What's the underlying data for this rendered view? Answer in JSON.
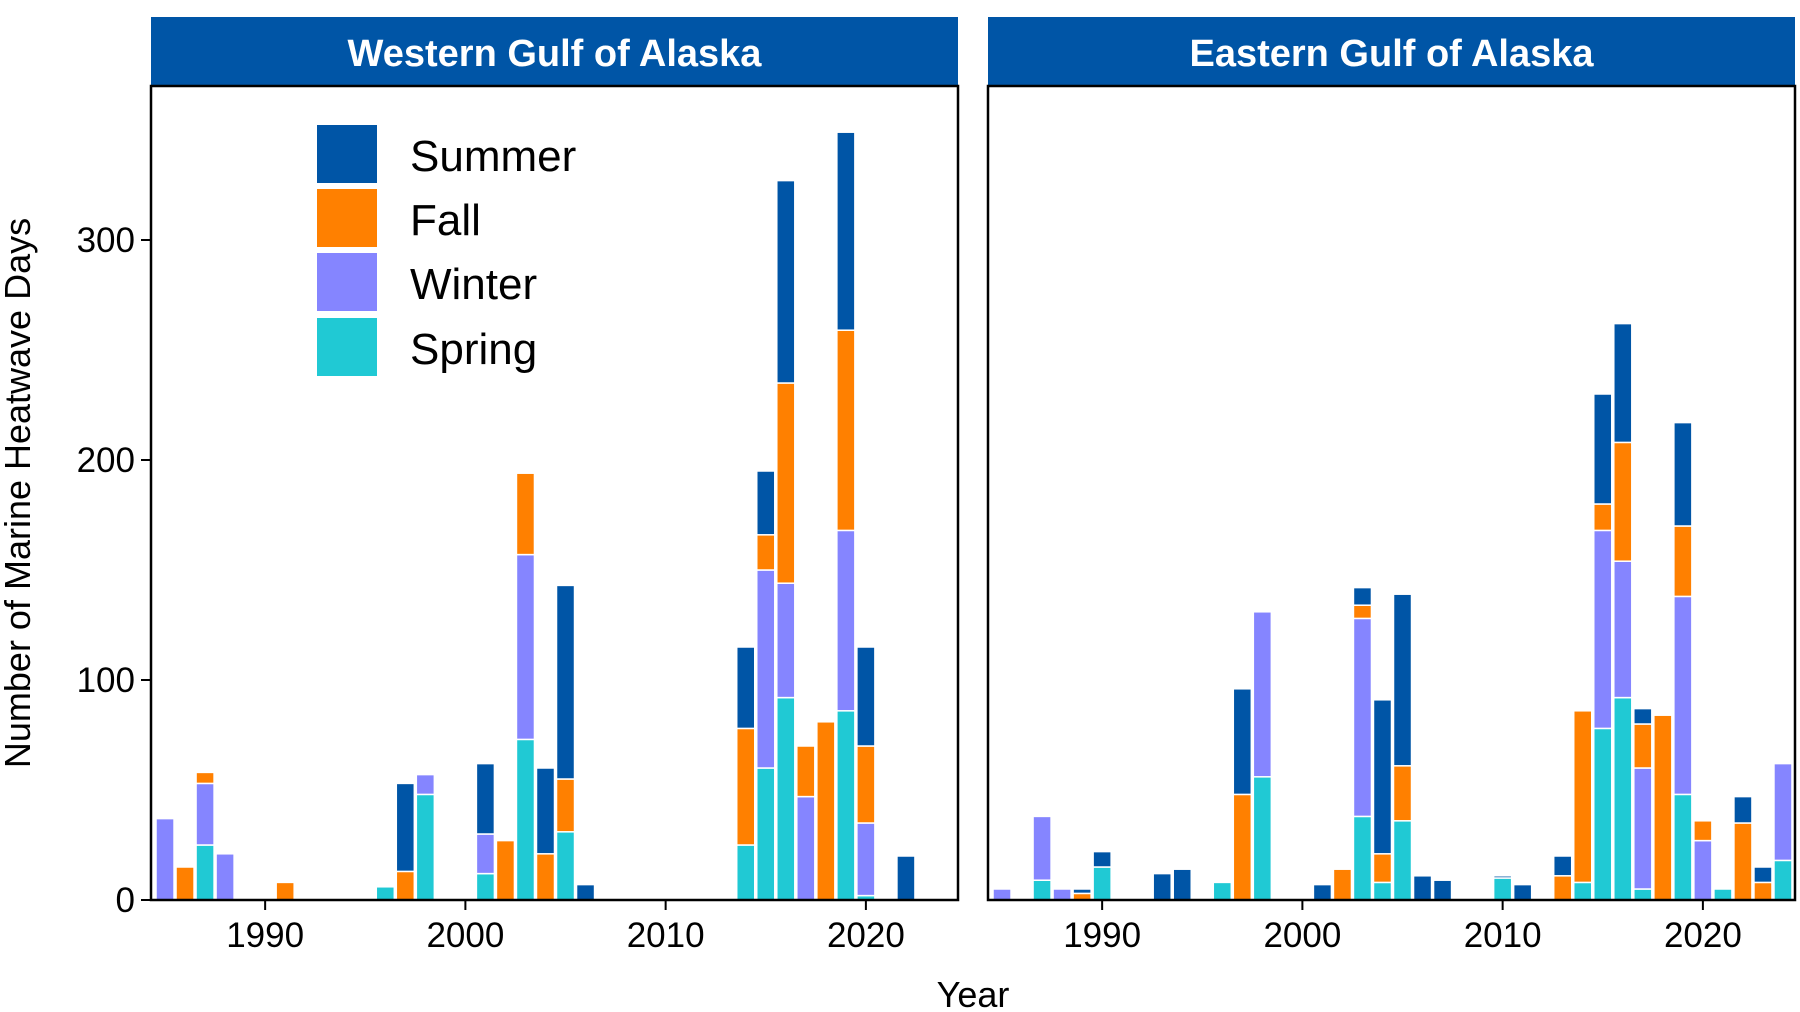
{
  "figure": {
    "xlabel": "Year",
    "ylabel": "Number of Marine Heatwave Days"
  },
  "legend": {
    "position": "top-left of first panel",
    "items": [
      {
        "label": "Summer",
        "color": "#0055A6"
      },
      {
        "label": "Fall",
        "color": "#FF8000"
      },
      {
        "label": "Winter",
        "color": "#8585FF"
      },
      {
        "label": "Spring",
        "color": "#20C9D4"
      }
    ]
  },
  "chart_data": [
    {
      "type": "bar",
      "stacked": true,
      "title": "Western Gulf of Alaska",
      "xlim": [
        1984.3,
        2024.6
      ],
      "ylim": [
        0,
        370
      ],
      "xticks": [
        1990,
        2000,
        2010,
        2020
      ],
      "yticks": [
        0,
        100,
        200,
        300
      ],
      "stack_order": [
        "Spring",
        "Winter",
        "Fall",
        "Summer"
      ],
      "bars": [
        {
          "year": 1985,
          "Spring": 0,
          "Winter": 37,
          "Fall": 0,
          "Summer": 0
        },
        {
          "year": 1986,
          "Spring": 0,
          "Winter": 0,
          "Fall": 15,
          "Summer": 0
        },
        {
          "year": 1987,
          "Spring": 25,
          "Winter": 28,
          "Fall": 5,
          "Summer": 0
        },
        {
          "year": 1988,
          "Spring": 0,
          "Winter": 21,
          "Fall": 0,
          "Summer": 0
        },
        {
          "year": 1991,
          "Spring": 0,
          "Winter": 0,
          "Fall": 8,
          "Summer": 0
        },
        {
          "year": 1996,
          "Spring": 6,
          "Winter": 0,
          "Fall": 0,
          "Summer": 0
        },
        {
          "year": 1997,
          "Spring": 0,
          "Winter": 0,
          "Fall": 13,
          "Summer": 40
        },
        {
          "year": 1998,
          "Spring": 48,
          "Winter": 9,
          "Fall": 0,
          "Summer": 0
        },
        {
          "year": 2001,
          "Spring": 12,
          "Winter": 18,
          "Fall": 0,
          "Summer": 32
        },
        {
          "year": 2002,
          "Spring": 0,
          "Winter": 0,
          "Fall": 27,
          "Summer": 0
        },
        {
          "year": 2003,
          "Spring": 73,
          "Winter": 84,
          "Fall": 37,
          "Summer": 0
        },
        {
          "year": 2004,
          "Spring": 0,
          "Winter": 0,
          "Fall": 21,
          "Summer": 39
        },
        {
          "year": 2005,
          "Spring": 31,
          "Winter": 0,
          "Fall": 24,
          "Summer": 88
        },
        {
          "year": 2006,
          "Spring": 0,
          "Winter": 0,
          "Fall": 0,
          "Summer": 7
        },
        {
          "year": 2014,
          "Spring": 25,
          "Winter": 0,
          "Fall": 53,
          "Summer": 37
        },
        {
          "year": 2015,
          "Spring": 60,
          "Winter": 90,
          "Fall": 16,
          "Summer": 29
        },
        {
          "year": 2016,
          "Spring": 92,
          "Winter": 52,
          "Fall": 91,
          "Summer": 92
        },
        {
          "year": 2017,
          "Spring": 0,
          "Winter": 47,
          "Fall": 23,
          "Summer": 0
        },
        {
          "year": 2018,
          "Spring": 0,
          "Winter": 0,
          "Fall": 81,
          "Summer": 0
        },
        {
          "year": 2019,
          "Spring": 86,
          "Winter": 82,
          "Fall": 91,
          "Summer": 90
        },
        {
          "year": 2020,
          "Spring": 2,
          "Winter": 33,
          "Fall": 35,
          "Summer": 45
        },
        {
          "year": 2022,
          "Spring": 0,
          "Winter": 0,
          "Fall": 0,
          "Summer": 20
        }
      ]
    },
    {
      "type": "bar",
      "stacked": true,
      "title": "Eastern Gulf of Alaska",
      "xlim": [
        1984.3,
        2024.6
      ],
      "ylim": [
        0,
        370
      ],
      "xticks": [
        1990,
        2000,
        2010,
        2020
      ],
      "yticks": [
        0,
        100,
        200,
        300
      ],
      "stack_order": [
        "Spring",
        "Winter",
        "Fall",
        "Summer"
      ],
      "bars": [
        {
          "year": 1985,
          "Spring": 0,
          "Winter": 5,
          "Fall": 0,
          "Summer": 0
        },
        {
          "year": 1987,
          "Spring": 9,
          "Winter": 29,
          "Fall": 0,
          "Summer": 0
        },
        {
          "year": 1988,
          "Spring": 0,
          "Winter": 5,
          "Fall": 0,
          "Summer": 0
        },
        {
          "year": 1989,
          "Spring": 0,
          "Winter": 0,
          "Fall": 3,
          "Summer": 2
        },
        {
          "year": 1990,
          "Spring": 15,
          "Winter": 0,
          "Fall": 0,
          "Summer": 7
        },
        {
          "year": 1993,
          "Spring": 0,
          "Winter": 0,
          "Fall": 0,
          "Summer": 12
        },
        {
          "year": 1994,
          "Spring": 0,
          "Winter": 0,
          "Fall": 0,
          "Summer": 14
        },
        {
          "year": 1996,
          "Spring": 8,
          "Winter": 0,
          "Fall": 0,
          "Summer": 0
        },
        {
          "year": 1997,
          "Spring": 0,
          "Winter": 0,
          "Fall": 48,
          "Summer": 48
        },
        {
          "year": 1998,
          "Spring": 56,
          "Winter": 75,
          "Fall": 0,
          "Summer": 0
        },
        {
          "year": 2001,
          "Spring": 0,
          "Winter": 0,
          "Fall": 0,
          "Summer": 7
        },
        {
          "year": 2002,
          "Spring": 0,
          "Winter": 0,
          "Fall": 14,
          "Summer": 0
        },
        {
          "year": 2003,
          "Spring": 38,
          "Winter": 90,
          "Fall": 6,
          "Summer": 8
        },
        {
          "year": 2004,
          "Spring": 8,
          "Winter": 0,
          "Fall": 13,
          "Summer": 70
        },
        {
          "year": 2005,
          "Spring": 36,
          "Winter": 0,
          "Fall": 25,
          "Summer": 78
        },
        {
          "year": 2006,
          "Spring": 0,
          "Winter": 0,
          "Fall": 0,
          "Summer": 11
        },
        {
          "year": 2007,
          "Spring": 0,
          "Winter": 0,
          "Fall": 0,
          "Summer": 9
        },
        {
          "year": 2010,
          "Spring": 10,
          "Winter": 0,
          "Fall": 0,
          "Summer": 1
        },
        {
          "year": 2011,
          "Spring": 0,
          "Winter": 0,
          "Fall": 0,
          "Summer": 7
        },
        {
          "year": 2013,
          "Spring": 0,
          "Winter": 0,
          "Fall": 11,
          "Summer": 9
        },
        {
          "year": 2014,
          "Spring": 8,
          "Winter": 0,
          "Fall": 78,
          "Summer": 0
        },
        {
          "year": 2015,
          "Spring": 78,
          "Winter": 90,
          "Fall": 12,
          "Summer": 50
        },
        {
          "year": 2016,
          "Spring": 92,
          "Winter": 62,
          "Fall": 54,
          "Summer": 54
        },
        {
          "year": 2017,
          "Spring": 5,
          "Winter": 55,
          "Fall": 20,
          "Summer": 7
        },
        {
          "year": 2018,
          "Spring": 0,
          "Winter": 0,
          "Fall": 84,
          "Summer": 0
        },
        {
          "year": 2019,
          "Spring": 48,
          "Winter": 90,
          "Fall": 32,
          "Summer": 47
        },
        {
          "year": 2020,
          "Spring": 0,
          "Winter": 27,
          "Fall": 9,
          "Summer": 0
        },
        {
          "year": 2021,
          "Spring": 5,
          "Winter": 0,
          "Fall": 0,
          "Summer": 0
        },
        {
          "year": 2022,
          "Spring": 0,
          "Winter": 0,
          "Fall": 35,
          "Summer": 12
        },
        {
          "year": 2023,
          "Spring": 0,
          "Winter": 0,
          "Fall": 8,
          "Summer": 7
        },
        {
          "year": 2024,
          "Spring": 18,
          "Winter": 44,
          "Fall": 0,
          "Summer": 0
        }
      ]
    }
  ]
}
